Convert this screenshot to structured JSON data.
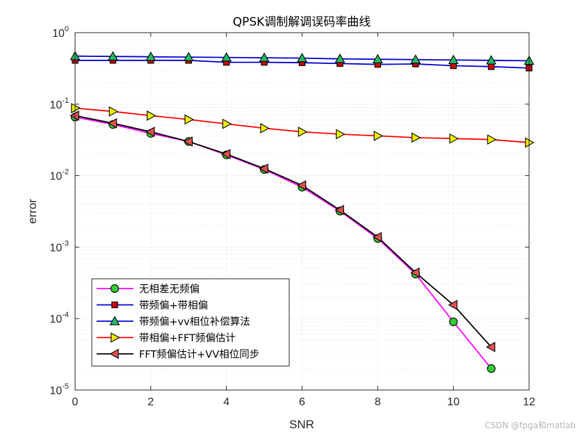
{
  "chart_data": {
    "type": "line",
    "title": "QPSK调制解调误码率曲线",
    "xlabel": "SNR",
    "ylabel": "error",
    "xlim": [
      0,
      12
    ],
    "ylim": [
      1e-05,
      1
    ],
    "yscale": "log",
    "grid": true,
    "minor_grid": true,
    "xticks": [
      "0",
      "2",
      "4",
      "6",
      "8",
      "10",
      "12"
    ],
    "yticks": [
      {
        "base": "10",
        "exp": "0"
      },
      {
        "base": "10",
        "exp": "-1"
      },
      {
        "base": "10",
        "exp": "-2"
      },
      {
        "base": "10",
        "exp": "-3"
      },
      {
        "base": "10",
        "exp": "-4"
      },
      {
        "base": "10",
        "exp": "-5"
      }
    ],
    "legend_position": "bottom-left",
    "series": [
      {
        "name": "无相差无频偏",
        "color": "#ff00ff",
        "marker": "circle",
        "marker_color": "#33cc33",
        "x": [
          0,
          1,
          2,
          3,
          4,
          5,
          6,
          7,
          8,
          9,
          10,
          11
        ],
        "y": [
          0.066,
          0.052,
          0.039,
          0.03,
          0.0195,
          0.0122,
          0.0069,
          0.0032,
          0.00132,
          0.00042,
          9e-05,
          2e-05
        ]
      },
      {
        "name": "带频偏+带相偏",
        "color": "#0000cc",
        "marker": "square",
        "marker_color": "#cc0000",
        "x": [
          0,
          1,
          2,
          3,
          4,
          5,
          6,
          7,
          8,
          9,
          10,
          11,
          12
        ],
        "y": [
          0.41,
          0.41,
          0.41,
          0.41,
          0.385,
          0.385,
          0.38,
          0.37,
          0.36,
          0.365,
          0.345,
          0.335,
          0.32
        ]
      },
      {
        "name": "带频偏+vv相位补偿算法",
        "color": "#0000cc",
        "marker": "triangle-up",
        "marker_color": "#22bb66",
        "x": [
          0,
          1,
          2,
          3,
          4,
          5,
          6,
          7,
          8,
          9,
          10,
          11,
          12
        ],
        "y": [
          0.47,
          0.465,
          0.46,
          0.455,
          0.45,
          0.445,
          0.44,
          0.43,
          0.425,
          0.42,
          0.415,
          0.41,
          0.405
        ]
      },
      {
        "name": "带相偏+FFT频偏估计",
        "color": "#ff0000",
        "marker": "triangle-right",
        "marker_color": "#eeee00",
        "x": [
          0,
          1,
          2,
          3,
          4,
          5,
          6,
          7,
          8,
          9,
          10,
          11,
          12
        ],
        "y": [
          0.088,
          0.079,
          0.069,
          0.061,
          0.053,
          0.046,
          0.041,
          0.038,
          0.036,
          0.034,
          0.033,
          0.032,
          0.029
        ]
      },
      {
        "name": "FFT频偏估计+VV相位同步",
        "color": "#000000",
        "marker": "triangle-left",
        "marker_color": "#e05050",
        "x": [
          0,
          1,
          2,
          3,
          4,
          5,
          6,
          7,
          8,
          9,
          10,
          11
        ],
        "y": [
          0.069,
          0.054,
          0.041,
          0.03,
          0.02,
          0.0125,
          0.0073,
          0.0033,
          0.00138,
          0.00044,
          0.000155,
          4e-05
        ]
      }
    ]
  },
  "watermark": "CSDN @fpga和matlab"
}
